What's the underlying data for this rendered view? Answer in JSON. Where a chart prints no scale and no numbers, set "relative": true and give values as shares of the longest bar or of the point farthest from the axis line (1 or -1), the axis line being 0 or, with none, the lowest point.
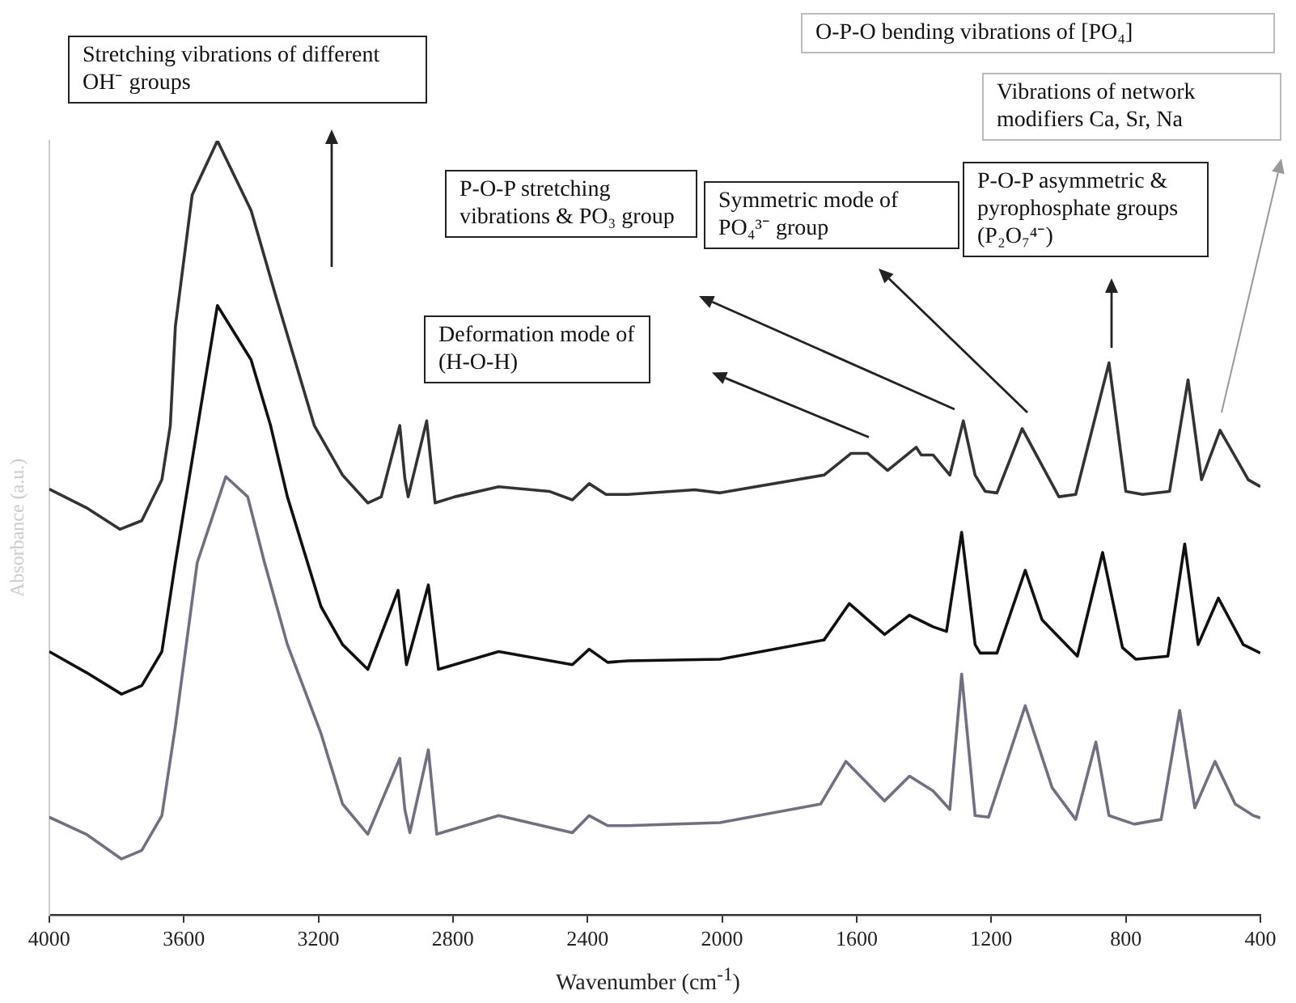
{
  "chart_data": {
    "type": "line",
    "xlabel": "Wavenumber (cm$^{-1}$)",
    "ylabel": "Absorbance (a.u.)",
    "relative": true,
    "xlim": [
      4000,
      400
    ],
    "xticks": [
      4000,
      3600,
      3200,
      2800,
      2400,
      2000,
      1600,
      1200,
      800,
      400
    ],
    "legend": false,
    "marker": "none",
    "line_style": "solid",
    "series": [
      {
        "color": "#333333",
        "x": [
          4000,
          3890,
          3790,
          3725,
          3665,
          3640,
          3625,
          3575,
          3500,
          3400,
          3327,
          3212,
          3128,
          3053,
          3013,
          2958,
          2943,
          2933,
          2878,
          2853,
          2794,
          2664,
          2514,
          2445,
          2395,
          2345,
          2280,
          2081,
          2006,
          1697,
          1617,
          1567,
          1508,
          1423,
          1408,
          1373,
          1323,
          1283,
          1248,
          1218,
          1183,
          1108,
          999,
          949,
          850,
          800,
          750,
          670,
          615,
          575,
          520,
          436,
          400
        ],
        "values": [
          0.55,
          0.526,
          0.498,
          0.509,
          0.562,
          0.632,
          0.76,
          0.93,
          1.0,
          0.91,
          0.8,
          0.632,
          0.568,
          0.532,
          0.54,
          0.632,
          0.564,
          0.54,
          0.638,
          0.532,
          0.54,
          0.553,
          0.547,
          0.536,
          0.557,
          0.543,
          0.543,
          0.549,
          0.545,
          0.568,
          0.596,
          0.596,
          0.574,
          0.604,
          0.594,
          0.594,
          0.568,
          0.638,
          0.568,
          0.547,
          0.545,
          0.628,
          0.54,
          0.543,
          0.713,
          0.547,
          0.543,
          0.547,
          0.691,
          0.562,
          0.626,
          0.562,
          0.553
        ]
      },
      {
        "color": "#111111",
        "x": [
          4000,
          3890,
          3785,
          3725,
          3665,
          3625,
          3500,
          3400,
          3342,
          3292,
          3192,
          3128,
          3053,
          2963,
          2938,
          2873,
          2843,
          2664,
          2445,
          2395,
          2340,
          2280,
          2006,
          1697,
          1622,
          1517,
          1443,
          1373,
          1333,
          1288,
          1248,
          1233,
          1183,
          1099,
          1049,
          944,
          869,
          810,
          770,
          675,
          625,
          585,
          525,
          451,
          400
        ],
        "values": [
          0.34,
          0.313,
          0.285,
          0.296,
          0.34,
          0.455,
          0.787,
          0.717,
          0.632,
          0.54,
          0.398,
          0.349,
          0.317,
          0.419,
          0.323,
          0.426,
          0.317,
          0.34,
          0.323,
          0.343,
          0.326,
          0.328,
          0.33,
          0.355,
          0.402,
          0.362,
          0.387,
          0.372,
          0.366,
          0.494,
          0.349,
          0.338,
          0.338,
          0.445,
          0.381,
          0.334,
          0.468,
          0.345,
          0.33,
          0.334,
          0.479,
          0.349,
          0.409,
          0.349,
          0.338
        ]
      },
      {
        "color": "#707080",
        "x": [
          4000,
          3890,
          3785,
          3725,
          3665,
          3625,
          3560,
          3475,
          3410,
          3360,
          3292,
          3192,
          3128,
          3053,
          2958,
          2943,
          2928,
          2873,
          2848,
          2664,
          2445,
          2395,
          2340,
          2280,
          2006,
          1707,
          1632,
          1517,
          1443,
          1373,
          1323,
          1288,
          1248,
          1208,
          1099,
          1019,
          949,
          889,
          850,
          775,
          695,
          640,
          595,
          535,
          475,
          421,
          400
        ],
        "values": [
          0.126,
          0.104,
          0.072,
          0.083,
          0.128,
          0.243,
          0.455,
          0.566,
          0.54,
          0.455,
          0.349,
          0.234,
          0.143,
          0.104,
          0.202,
          0.136,
          0.106,
          0.213,
          0.104,
          0.128,
          0.106,
          0.128,
          0.115,
          0.115,
          0.119,
          0.143,
          0.198,
          0.147,
          0.179,
          0.16,
          0.136,
          0.311,
          0.128,
          0.126,
          0.27,
          0.164,
          0.123,
          0.223,
          0.128,
          0.117,
          0.123,
          0.264,
          0.138,
          0.198,
          0.143,
          0.128,
          0.125
        ]
      }
    ],
    "annotations": [
      "Stretching vibrations of different OH⁻ groups",
      "Deformation mode of (H-O-H)",
      "P-O-P stretching vibrations & PO₃ group",
      "Symmetric mode of PO₄³⁻ group",
      "P-O-P asymmetric & pyrophosphate groups (P₂O₇⁴⁻)",
      "Vibrations of network modifiers Ca, Sr, Na",
      "O-P-O bending vibrations of [PO₄]"
    ]
  }
}
